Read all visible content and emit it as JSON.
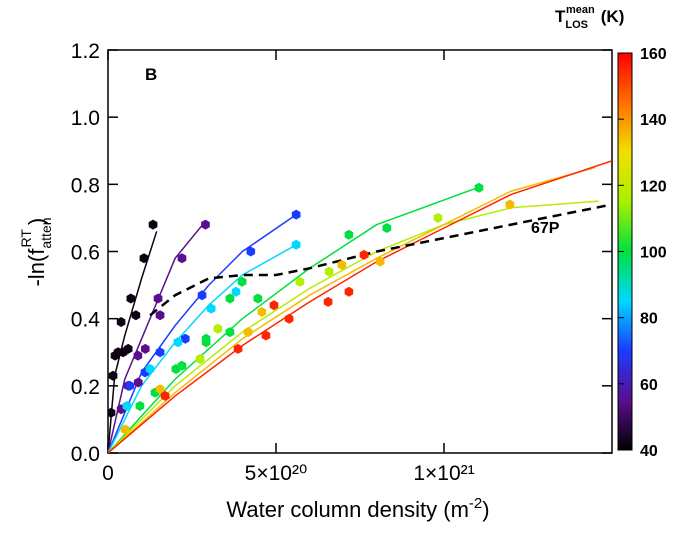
{
  "chart_data": {
    "type": "scatter",
    "panel_label": "B",
    "x_label": {
      "text": "Water column density (m",
      "sup": "-2",
      "close": ")"
    },
    "y_label": {
      "text": "-ln(f",
      "sub": "atten",
      "sup": "RT",
      "close": ")"
    },
    "xlim": [
      0,
      1.5e+21
    ],
    "ylim": [
      0,
      1.2
    ],
    "xticks": [
      0,
      {
        "value": 5e+20,
        "label": "5×10²⁰"
      },
      {
        "value": 1e+21,
        "label": "1×10²¹"
      }
    ],
    "yticks": [
      {
        "value": 0,
        "label": "0.0"
      },
      0.2,
      0.4,
      0.6,
      0.8,
      {
        "value": 1,
        "label": "1.0"
      },
      1.2
    ],
    "colorbar": {
      "title": {
        "text": "T",
        "sub": "LOS",
        "sup": "mean",
        "unit": "(K)"
      },
      "lim": [
        40,
        160
      ],
      "ticks": [
        40,
        60,
        80,
        100,
        120,
        140,
        160
      ],
      "colormap": [
        "#000000",
        "#5b0e8e",
        "#1a3cff",
        "#00d8ff",
        "#00e040",
        "#a8f000",
        "#f0e000",
        "#ff7000",
        "#ff0000"
      ]
    },
    "groups": [
      {
        "temperature": 42,
        "x": [
          9e+18,
          1.5e+19,
          2.1e+19,
          3e+19,
          3.9e+19,
          4.5e+19,
          6e+19,
          6.8e+19,
          8.3e+19,
          1.07e+20,
          1.34e+20
        ],
        "values": [
          0.12,
          0.23,
          0.29,
          0.3,
          0.39,
          0.3,
          0.31,
          0.46,
          0.41,
          0.58,
          0.68
        ],
        "fit_x": [
          0,
          2e+19,
          5e+19,
          1e+20,
          1.45e+20
        ],
        "fit_values": [
          0,
          0.23,
          0.35,
          0.52,
          0.66
        ]
      },
      {
        "temperature": 55,
        "x": [
          3.9e+19,
          6e+19,
          8.9e+19,
          1.11e+20,
          1.49e+20,
          1.55e+20,
          2.2e+20,
          2.9e+20,
          9e+19
        ],
        "values": [
          0.13,
          0.2,
          0.29,
          0.31,
          0.46,
          0.41,
          0.58,
          0.68,
          0.21
        ],
        "fit_x": [
          0,
          5e+19,
          1e+20,
          1.5e+20,
          2e+20,
          2.9e+20
        ],
        "fit_values": [
          0,
          0.22,
          0.34,
          0.46,
          0.58,
          0.69
        ]
      },
      {
        "temperature": 70,
        "x": [
          6.5e+19,
          1.1e+20,
          1.55e+20,
          2.3e+20,
          2.8e+20,
          4.25e+20,
          5.6e+20
        ],
        "values": [
          0.2,
          0.24,
          0.3,
          0.34,
          0.47,
          0.6,
          0.71
        ],
        "fit_x": [
          0,
          1e+20,
          2e+20,
          3e+20,
          4e+20,
          5.6e+20
        ],
        "fit_values": [
          0,
          0.24,
          0.38,
          0.5,
          0.6,
          0.71
        ]
      },
      {
        "temperature": 85,
        "x": [
          5.6e+19,
          1.25e+20,
          2.08e+20,
          3.07e+20,
          3.81e+20,
          5.6e+20
        ],
        "values": [
          0.14,
          0.25,
          0.33,
          0.43,
          0.48,
          0.62
        ],
        "fit_x": [
          0,
          1e+20,
          2e+20,
          3e+20,
          4e+20,
          5.6e+20
        ],
        "fit_values": [
          0,
          0.2,
          0.33,
          0.44,
          0.53,
          0.62
        ]
      },
      {
        "temperature": 100,
        "x": [
          9.5e+19,
          2.02e+20,
          2.2e+20,
          2.92e+20,
          3.63e+20,
          3.99e+20,
          4.46e+20,
          7.17e+20,
          8.3e+20,
          1.104e+21,
          2.92e+20,
          1.4e+20,
          3.63e+20
        ],
        "values": [
          0.14,
          0.25,
          0.26,
          0.33,
          0.46,
          0.51,
          0.46,
          0.65,
          0.67,
          0.79,
          0.34,
          0.18,
          0.36
        ],
        "fit_x": [
          0,
          2e+20,
          4e+20,
          6e+20,
          8e+20,
          1.1e+21
        ],
        "fit_values": [
          0,
          0.22,
          0.4,
          0.55,
          0.68,
          0.79
        ]
      },
      {
        "temperature": 118,
        "x": [
          2.74e+20,
          3.27e+20,
          5.71e+20,
          6.58e+20,
          9.82e+20
        ],
        "values": [
          0.28,
          0.37,
          0.51,
          0.54,
          0.7
        ],
        "fit_x": [
          0,
          2e+20,
          4e+20,
          6e+20,
          8e+20,
          1e+21,
          1.2e+21,
          1.46e+21
        ],
        "fit_values": [
          0,
          0.2,
          0.36,
          0.49,
          0.6,
          0.68,
          0.73,
          0.75
        ]
      },
      {
        "temperature": 135,
        "x": [
          5.1e+19,
          1.55e+20,
          4.17e+20,
          4.58e+20,
          6.96e+20,
          8.1e+20,
          1.196e+21
        ],
        "values": [
          0.07,
          0.19,
          0.36,
          0.42,
          0.56,
          0.57,
          0.74
        ],
        "fit_x": [
          0,
          2e+20,
          4e+20,
          6e+20,
          8e+20,
          1e+21,
          1.2e+21,
          1.45e+21
        ],
        "fit_values": [
          0,
          0.18,
          0.34,
          0.47,
          0.58,
          0.68,
          0.78,
          0.85
        ]
      },
      {
        "temperature": 155,
        "x": [
          1.7e+20,
          3.87e+20,
          4.7e+20,
          5.39e+20,
          6.55e+20,
          7.17e+20,
          7.62e+20,
          4.94e+20
        ],
        "values": [
          0.17,
          0.31,
          0.35,
          0.4,
          0.45,
          0.48,
          0.59,
          0.44
        ],
        "fit_x": [
          0,
          2e+20,
          4e+20,
          6e+20,
          8e+20,
          1e+21,
          1.2e+21,
          1.5e+21
        ],
        "fit_values": [
          0,
          0.17,
          0.32,
          0.45,
          0.57,
          0.67,
          0.77,
          0.87
        ]
      }
    ],
    "reference": {
      "name": "67P",
      "x": [
        1.25e+20,
        2e+20,
        3e+20,
        4e+20,
        5e+20,
        6e+20,
        8e+20,
        1e+21,
        1.2e+21,
        1.5e+21
      ],
      "values": [
        0.41,
        0.47,
        0.52,
        0.53,
        0.53,
        0.55,
        0.6,
        0.64,
        0.68,
        0.74
      ]
    }
  }
}
